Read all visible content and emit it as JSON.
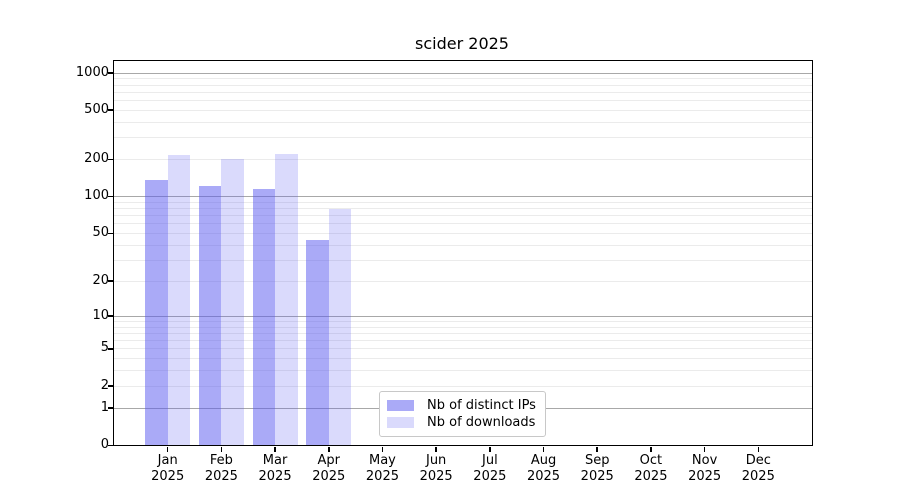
{
  "chart_data": {
    "type": "bar",
    "title": "scider 2025",
    "categories": [
      "Jan 2025",
      "Feb 2025",
      "Mar 2025",
      "Apr 2025",
      "May 2025",
      "Jun 2025",
      "Jul 2025",
      "Aug 2025",
      "Sep 2025",
      "Oct 2025",
      "Nov 2025",
      "Dec 2025"
    ],
    "series": [
      {
        "name": "Nb of distinct IPs",
        "color": "rgba(85,85,240,0.50)",
        "values": [
          135,
          120,
          115,
          44,
          null,
          null,
          null,
          null,
          null,
          null,
          null,
          null
        ]
      },
      {
        "name": "Nb of downloads",
        "color": "rgba(85,85,240,0.22)",
        "values": [
          215,
          200,
          220,
          78,
          null,
          null,
          null,
          null,
          null,
          null,
          null,
          null
        ]
      }
    ],
    "yscale": "log1p",
    "yticks": [
      0,
      1,
      2,
      5,
      10,
      20,
      50,
      100,
      200,
      500,
      1000
    ],
    "ylim": [
      0,
      1240
    ],
    "xlabel": "",
    "ylabel": "",
    "grid": {
      "major_lines": [
        1,
        10,
        100,
        1000
      ],
      "minor_lines_per_decade": [
        2,
        3,
        4,
        5,
        6,
        7,
        8,
        9
      ]
    },
    "legend_position": "lower center",
    "colors": {
      "grid_major": "#a8a8a8",
      "grid_minor": "#ebebeb",
      "spine": "#000000"
    }
  }
}
